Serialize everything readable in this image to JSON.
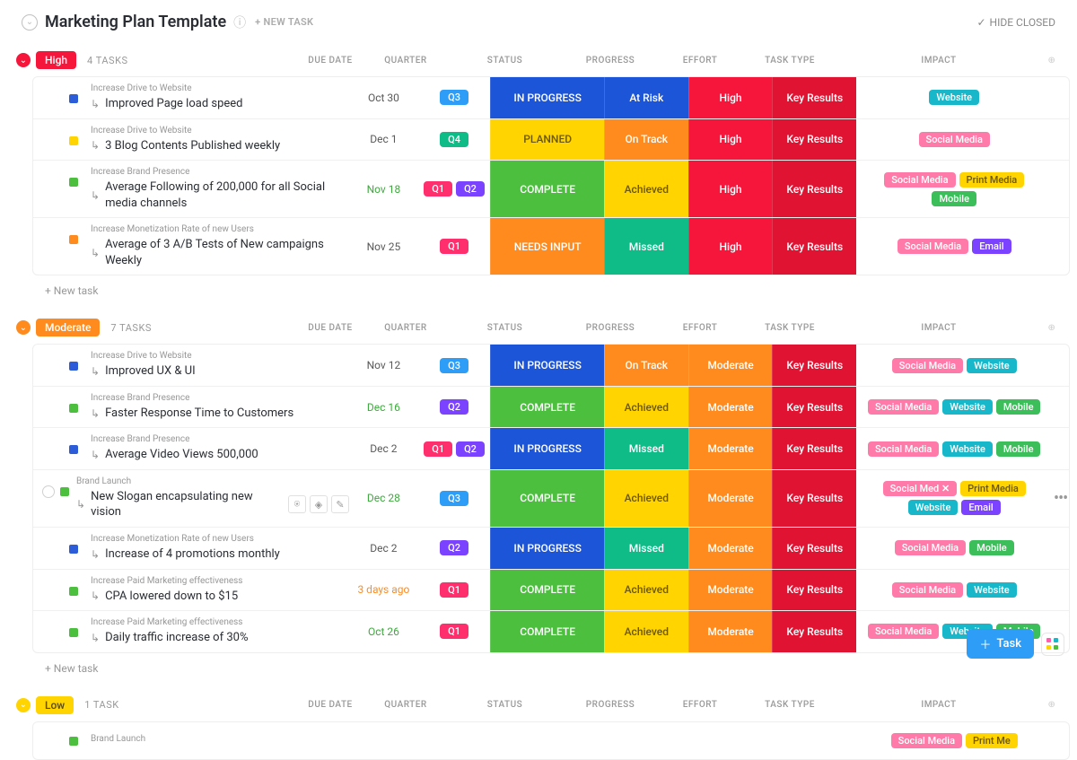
{
  "header": {
    "title": "Marketing Plan Template",
    "new_task": "+ NEW TASK",
    "hide_closed": "HIDE CLOSED"
  },
  "columns": {
    "due": "DUE DATE",
    "quarter": "QUARTER",
    "status": "STATUS",
    "progress": "PROGRESS",
    "effort": "EFFORT",
    "type": "TASK TYPE",
    "impact": "IMPACT"
  },
  "colors": {
    "high": "#f6163c",
    "moderate": "#ff8b1f",
    "low": "#ffd400",
    "q1": "#ff2e6c",
    "q2": "#7b42ff",
    "q3": "#2e9df7",
    "q4": "#0fbb87",
    "status_inprogress": "#1d55d8",
    "status_planned": "#ffd400",
    "status_complete": "#4cbf3f",
    "status_needs": "#ff8b1f",
    "prog_atrisk": "#1d55d8",
    "prog_ontrack": "#ff8b1f",
    "prog_achieved": "#ffd400",
    "prog_missed": "#0fbb87",
    "effort_high": "#f6163c",
    "effort_moderate": "#ff8b1f",
    "type_keyresults": "#e01432",
    "tag_website": "#18b7c9",
    "tag_social": "#ff7aa8",
    "tag_print": "#ffd400",
    "tag_mobile": "#3cbf5a",
    "tag_email": "#7b42ff",
    "sq_blue": "#2c5cd8",
    "sq_yellow": "#ffd400",
    "sq_green": "#4cbf3f",
    "sq_orange": "#ff8b1f",
    "due_normal": "#5a5a5a",
    "due_green": "#3faa3f",
    "due_ago": "#ff8b1f"
  },
  "groups": [
    {
      "id": "high",
      "label": "High",
      "pill_color": "#f6163c",
      "count": "4 TASKS",
      "tasks": [
        {
          "sq": "#2c5cd8",
          "cat": "Increase Drive to Website",
          "name": "Improved Page load speed",
          "due": "Oct 30",
          "due_c": "#5a5a5a",
          "quarters": [
            {
              "l": "Q3",
              "c": "#2e9df7"
            }
          ],
          "status": {
            "l": "IN PROGRESS",
            "c": "#1d55d8"
          },
          "progress": {
            "l": "At Risk",
            "c": "#1d55d8"
          },
          "effort": {
            "l": "High",
            "c": "#f6163c"
          },
          "type": {
            "l": "Key Results",
            "c": "#e01432"
          },
          "tags": [
            {
              "l": "Website",
              "c": "#18b7c9"
            }
          ]
        },
        {
          "sq": "#ffd400",
          "cat": "Increase Drive to Website",
          "name": "3 Blog Contents Published weekly",
          "due": "Dec 1",
          "due_c": "#5a5a5a",
          "quarters": [
            {
              "l": "Q4",
              "c": "#0fbb87"
            }
          ],
          "status": {
            "l": "PLANNED",
            "c": "#ffd400",
            "tc": "#6a5700"
          },
          "progress": {
            "l": "On Track",
            "c": "#ff8b1f"
          },
          "effort": {
            "l": "High",
            "c": "#f6163c"
          },
          "type": {
            "l": "Key Results",
            "c": "#e01432"
          },
          "tags": [
            {
              "l": "Social Media",
              "c": "#ff7aa8"
            }
          ]
        },
        {
          "sq": "#4cbf3f",
          "cat": "Increase Brand Presence",
          "name": "Average Following of 200,000 for all Social media channels",
          "due": "Nov 18",
          "due_c": "#3faa3f",
          "quarters": [
            {
              "l": "Q1",
              "c": "#ff2e6c"
            },
            {
              "l": "Q2",
              "c": "#7b42ff"
            }
          ],
          "status": {
            "l": "COMPLETE",
            "c": "#4cbf3f"
          },
          "progress": {
            "l": "Achieved",
            "c": "#ffd400",
            "tc": "#6a5700"
          },
          "effort": {
            "l": "High",
            "c": "#f6163c"
          },
          "type": {
            "l": "Key Results",
            "c": "#e01432"
          },
          "tags": [
            {
              "l": "Social Media",
              "c": "#ff7aa8"
            },
            {
              "l": "Print Media",
              "c": "#ffd400",
              "tc": "#6a5700"
            },
            {
              "l": "Mobile",
              "c": "#3cbf5a"
            }
          ]
        },
        {
          "sq": "#ff8b1f",
          "cat": "Increase Monetization Rate of new Users",
          "name": "Average of 3 A/B Tests of New campaigns Weekly",
          "due": "Nov 25",
          "due_c": "#5a5a5a",
          "quarters": [
            {
              "l": "Q1",
              "c": "#ff2e6c"
            }
          ],
          "status": {
            "l": "NEEDS INPUT",
            "c": "#ff8b1f"
          },
          "progress": {
            "l": "Missed",
            "c": "#0fbb87"
          },
          "effort": {
            "l": "High",
            "c": "#f6163c"
          },
          "type": {
            "l": "Key Results",
            "c": "#e01432"
          },
          "tags": [
            {
              "l": "Social Media",
              "c": "#ff7aa8"
            },
            {
              "l": "Email",
              "c": "#7b42ff"
            }
          ]
        }
      ],
      "new_task": "+ New task"
    },
    {
      "id": "moderate",
      "label": "Moderate",
      "pill_color": "#ff8b1f",
      "count": "7 TASKS",
      "tasks": [
        {
          "sq": "#2c5cd8",
          "cat": "Increase Drive to Website",
          "name": "Improved UX & UI",
          "due": "Nov 12",
          "due_c": "#5a5a5a",
          "quarters": [
            {
              "l": "Q3",
              "c": "#2e9df7"
            }
          ],
          "status": {
            "l": "IN PROGRESS",
            "c": "#1d55d8"
          },
          "progress": {
            "l": "On Track",
            "c": "#ff8b1f"
          },
          "effort": {
            "l": "Moderate",
            "c": "#ff8b1f"
          },
          "type": {
            "l": "Key Results",
            "c": "#e01432"
          },
          "tags": [
            {
              "l": "Social Media",
              "c": "#ff7aa8"
            },
            {
              "l": "Website",
              "c": "#18b7c9"
            }
          ]
        },
        {
          "sq": "#4cbf3f",
          "cat": "Increase Brand Presence",
          "name": "Faster Response Time to Customers",
          "due": "Dec 16",
          "due_c": "#3faa3f",
          "quarters": [
            {
              "l": "Q2",
              "c": "#7b42ff"
            }
          ],
          "status": {
            "l": "COMPLETE",
            "c": "#4cbf3f"
          },
          "progress": {
            "l": "Achieved",
            "c": "#ffd400",
            "tc": "#6a5700"
          },
          "effort": {
            "l": "Moderate",
            "c": "#ff8b1f"
          },
          "type": {
            "l": "Key Results",
            "c": "#e01432"
          },
          "tags": [
            {
              "l": "Social Media",
              "c": "#ff7aa8"
            },
            {
              "l": "Website",
              "c": "#18b7c9"
            },
            {
              "l": "Mobile",
              "c": "#3cbf5a"
            }
          ]
        },
        {
          "sq": "#2c5cd8",
          "cat": "Increase Brand Presence",
          "name": "Average Video Views 500,000",
          "due": "Dec 2",
          "due_c": "#5a5a5a",
          "quarters": [
            {
              "l": "Q1",
              "c": "#ff2e6c"
            },
            {
              "l": "Q2",
              "c": "#7b42ff"
            }
          ],
          "status": {
            "l": "IN PROGRESS",
            "c": "#1d55d8"
          },
          "progress": {
            "l": "Missed",
            "c": "#0fbb87"
          },
          "effort": {
            "l": "Moderate",
            "c": "#ff8b1f"
          },
          "type": {
            "l": "Key Results",
            "c": "#e01432"
          },
          "tags": [
            {
              "l": "Social Media",
              "c": "#ff7aa8"
            },
            {
              "l": "Website",
              "c": "#18b7c9"
            },
            {
              "l": "Mobile",
              "c": "#3cbf5a"
            }
          ]
        },
        {
          "hover": true,
          "sq": "#4cbf3f",
          "cat": "Brand Launch",
          "name": "New Slogan encapsulating new vision",
          "due": "Dec 28",
          "due_c": "#3faa3f",
          "quarters": [
            {
              "l": "Q3",
              "c": "#2e9df7"
            }
          ],
          "status": {
            "l": "COMPLETE",
            "c": "#4cbf3f"
          },
          "progress": {
            "l": "Achieved",
            "c": "#ffd400",
            "tc": "#6a5700"
          },
          "effort": {
            "l": "Moderate",
            "c": "#ff8b1f"
          },
          "type": {
            "l": "Key Results",
            "c": "#e01432"
          },
          "tags": [
            {
              "l": "Social Med",
              "c": "#ff7aa8",
              "x": true
            },
            {
              "l": "Print Media",
              "c": "#ffd400",
              "tc": "#6a5700"
            },
            {
              "l": "Website",
              "c": "#18b7c9"
            },
            {
              "l": "Email",
              "c": "#7b42ff"
            }
          ]
        },
        {
          "sq": "#2c5cd8",
          "cat": "Increase Monetization Rate of new Users",
          "name": "Increase of 4 promotions monthly",
          "due": "Dec 2",
          "due_c": "#5a5a5a",
          "quarters": [
            {
              "l": "Q2",
              "c": "#7b42ff"
            }
          ],
          "status": {
            "l": "IN PROGRESS",
            "c": "#1d55d8"
          },
          "progress": {
            "l": "Missed",
            "c": "#0fbb87"
          },
          "effort": {
            "l": "Moderate",
            "c": "#ff8b1f"
          },
          "type": {
            "l": "Key Results",
            "c": "#e01432"
          },
          "tags": [
            {
              "l": "Social Media",
              "c": "#ff7aa8"
            },
            {
              "l": "Mobile",
              "c": "#3cbf5a"
            }
          ]
        },
        {
          "sq": "#4cbf3f",
          "cat": "Increase Paid Marketing effectiveness",
          "name": "CPA lowered down to $15",
          "due": "3 days ago",
          "due_c": "#ff8b1f",
          "quarters": [
            {
              "l": "Q1",
              "c": "#ff2e6c"
            }
          ],
          "status": {
            "l": "COMPLETE",
            "c": "#4cbf3f"
          },
          "progress": {
            "l": "Achieved",
            "c": "#ffd400",
            "tc": "#6a5700"
          },
          "effort": {
            "l": "Moderate",
            "c": "#ff8b1f"
          },
          "type": {
            "l": "Key Results",
            "c": "#e01432"
          },
          "tags": [
            {
              "l": "Social Media",
              "c": "#ff7aa8"
            },
            {
              "l": "Website",
              "c": "#18b7c9"
            }
          ]
        },
        {
          "sq": "#4cbf3f",
          "cat": "Increase Paid Marketing effectiveness",
          "name": "Daily traffic increase of 30%",
          "due": "Oct 26",
          "due_c": "#3faa3f",
          "quarters": [
            {
              "l": "Q1",
              "c": "#ff2e6c"
            }
          ],
          "status": {
            "l": "COMPLETE",
            "c": "#4cbf3f"
          },
          "progress": {
            "l": "Achieved",
            "c": "#ffd400",
            "tc": "#6a5700"
          },
          "effort": {
            "l": "Moderate",
            "c": "#ff8b1f"
          },
          "type": {
            "l": "Key Results",
            "c": "#e01432"
          },
          "tags": [
            {
              "l": "Social Media",
              "c": "#ff7aa8"
            },
            {
              "l": "Website",
              "c": "#18b7c9"
            },
            {
              "l": "Mobile",
              "c": "#3cbf5a"
            }
          ]
        }
      ],
      "new_task": "+ New task"
    },
    {
      "id": "low",
      "label": "Low",
      "pill_color": "#ffd400",
      "pill_tc": "#5a4a00",
      "count": "1 TASK",
      "tasks": [
        {
          "partial": true,
          "sq": "#4cbf3f",
          "cat": "Brand Launch",
          "tags": [
            {
              "l": "Social Media",
              "c": "#ff7aa8"
            },
            {
              "l": "Print Me",
              "c": "#ffd400",
              "tc": "#6a5700"
            }
          ]
        }
      ]
    }
  ],
  "fab": {
    "task": "Task"
  }
}
